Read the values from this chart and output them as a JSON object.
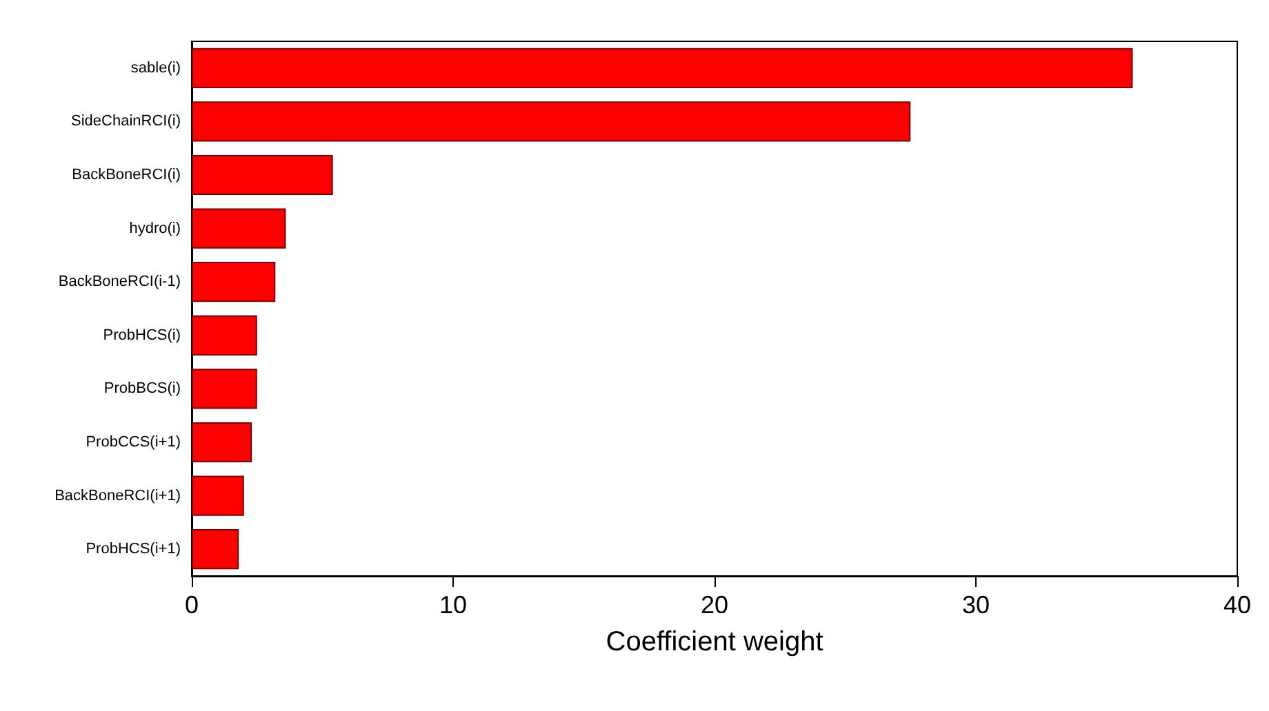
{
  "chart_data": {
    "type": "bar",
    "orientation": "horizontal",
    "xlabel": "Coefficient weight",
    "categories": [
      "sable(i)",
      "SideChainRCI(i)",
      "BackBoneRCI(i)",
      "hydro(i)",
      "BackBoneRCI(i-1)",
      "ProbHCS(i)",
      "ProbBCS(i)",
      "ProbCCS(i+1)",
      "BackBoneRCI(i+1)",
      "ProbHCS(i+1)"
    ],
    "values": [
      36.0,
      27.5,
      5.4,
      3.6,
      3.2,
      2.5,
      2.5,
      2.3,
      2.0,
      1.8
    ],
    "color": "#ff0000",
    "xlim": [
      0,
      40
    ],
    "xticks": [
      0,
      10,
      20,
      30,
      40
    ],
    "grid": false
  }
}
